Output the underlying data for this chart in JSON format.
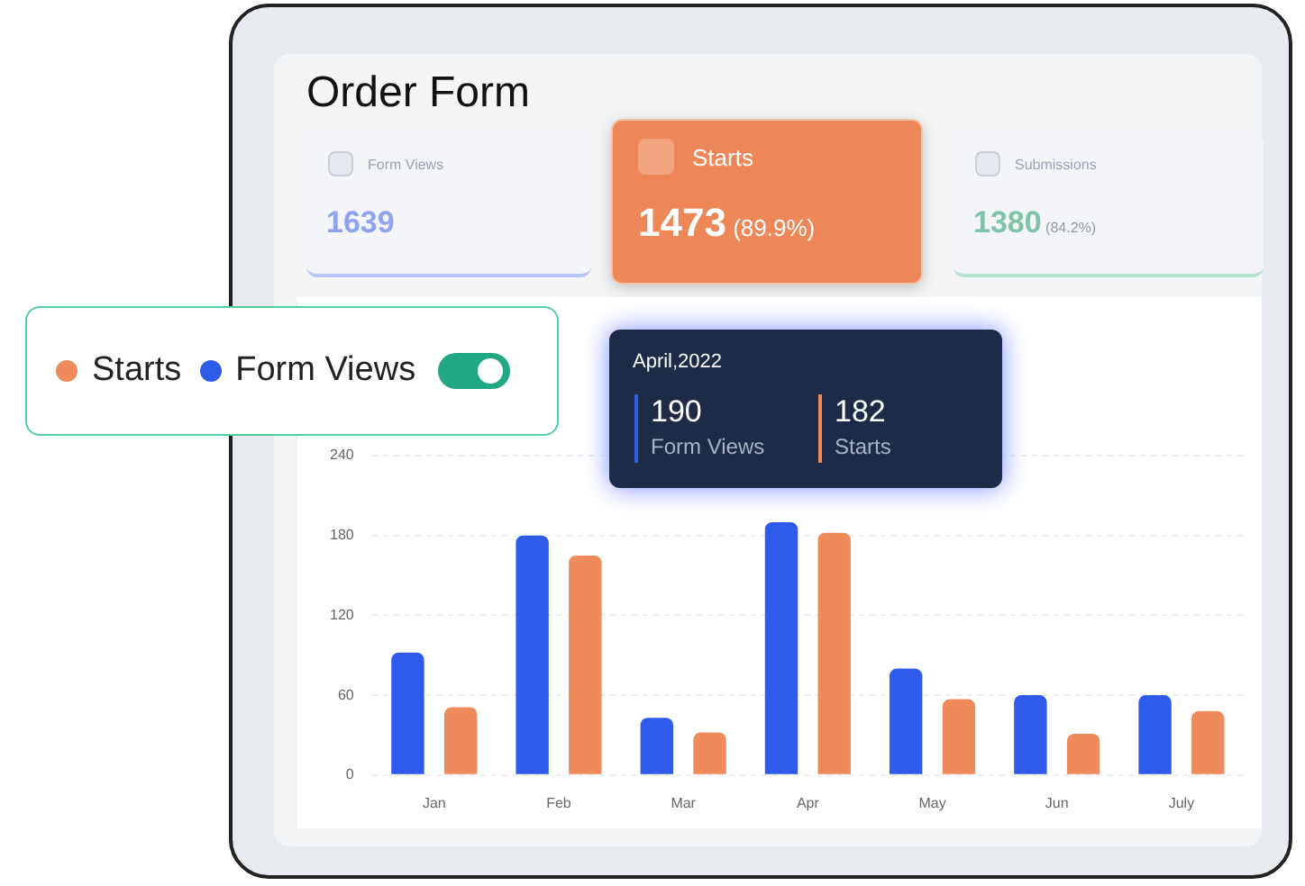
{
  "chart_data": {
    "type": "bar",
    "title": "Order Form",
    "categories": [
      "Jan",
      "Feb",
      "Mar",
      "Apr",
      "May",
      "Jun",
      "July"
    ],
    "series": [
      {
        "name": "Form Views",
        "color": "#2f5bea",
        "values": [
          92,
          180,
          43,
          190,
          80,
          60,
          60
        ]
      },
      {
        "name": "Starts",
        "color": "#ef8a5a",
        "values": [
          51,
          165,
          32,
          182,
          57,
          31,
          48
        ]
      }
    ],
    "ylim": [
      0,
      240
    ],
    "yticks": [
      0,
      60,
      120,
      180,
      240
    ],
    "grid": "y",
    "legend": "top left",
    "annotations": [
      "April,2022",
      "190",
      "182",
      "Form Views",
      "1639",
      "Starts",
      "1473",
      "(89.9%)",
      "Submissions",
      "1380",
      "(84.2%)"
    ]
  }
}
